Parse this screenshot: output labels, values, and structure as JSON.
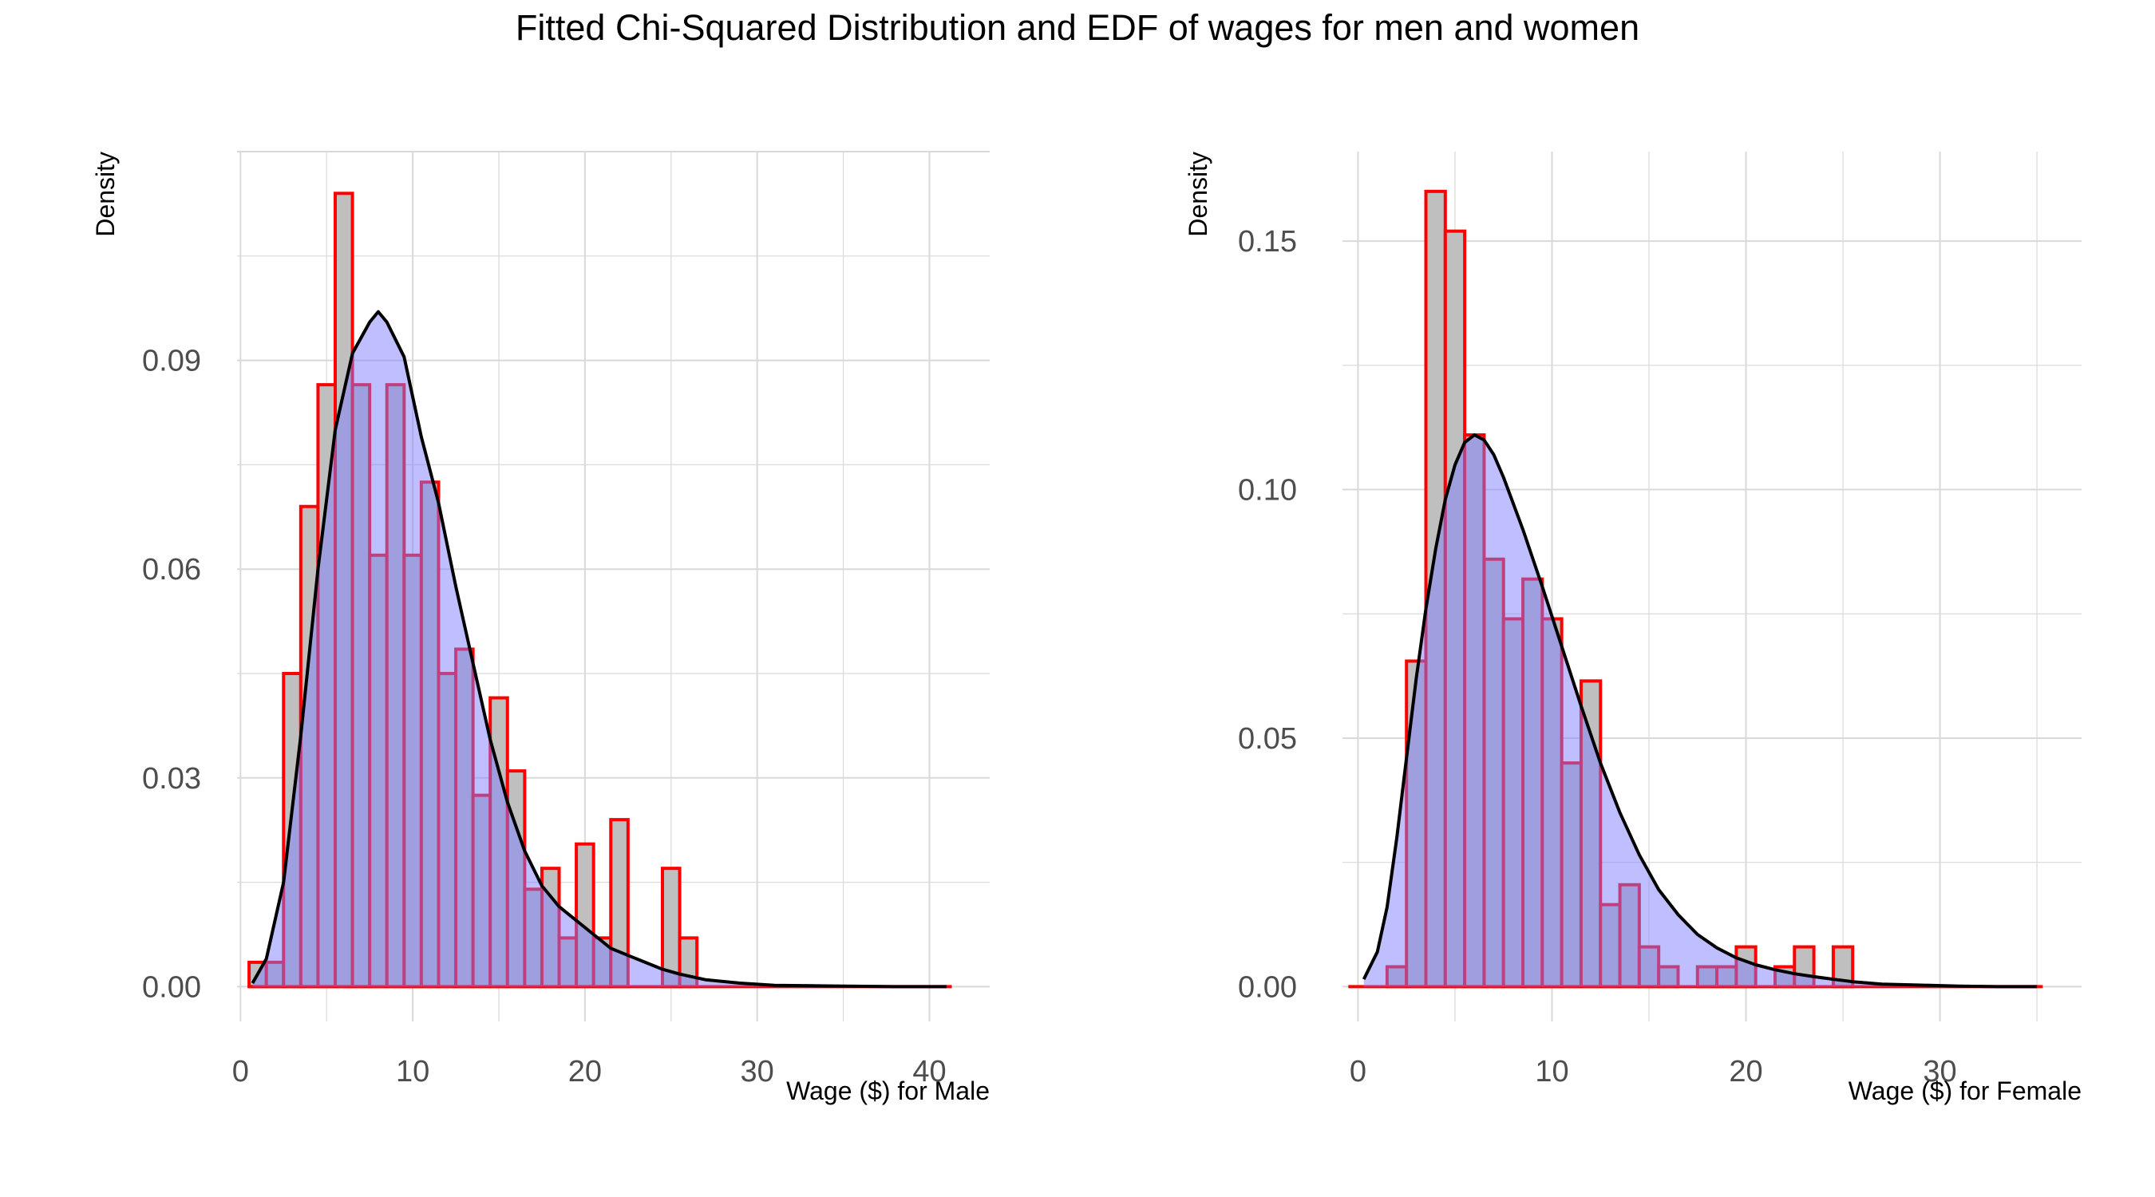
{
  "title": "Fitted Chi-Squared Distribution and EDF of wages for men and women",
  "colors": {
    "hist_fill": "#bfbfbf",
    "hist_stroke": "#ff0000",
    "density_fill": "#8080ff",
    "density_line": "#000000",
    "grid": "#d9d9d9",
    "tick_text": "#4d4d4d"
  },
  "chart_data": [
    {
      "type": "histogram+density",
      "xlabel": "Wage ($) for Male",
      "ylabel": "Density",
      "xlim": [
        -0.2,
        43.5
      ],
      "ylim": [
        -0.005,
        0.12
      ],
      "xticks": [
        0,
        10,
        20,
        30,
        40
      ],
      "xtick_labels": [
        "0",
        "10",
        "20",
        "30",
        "40"
      ],
      "yticks": [
        0.0,
        0.03,
        0.06,
        0.09
      ],
      "ytick_labels": [
        "0.00",
        "0.03",
        "0.06",
        "0.09"
      ],
      "grid": true,
      "bin_width": 1,
      "bins": [
        {
          "x0": 0.5,
          "x1": 1.5,
          "value": 0.0035
        },
        {
          "x0": 1.5,
          "x1": 2.5,
          "value": 0.0035
        },
        {
          "x0": 2.5,
          "x1": 3.5,
          "value": 0.045
        },
        {
          "x0": 3.5,
          "x1": 4.5,
          "value": 0.069
        },
        {
          "x0": 4.5,
          "x1": 5.5,
          "value": 0.0865
        },
        {
          "x0": 5.5,
          "x1": 6.5,
          "value": 0.114
        },
        {
          "x0": 6.5,
          "x1": 7.5,
          "value": 0.0865
        },
        {
          "x0": 7.5,
          "x1": 8.5,
          "value": 0.062
        },
        {
          "x0": 8.5,
          "x1": 9.5,
          "value": 0.0865
        },
        {
          "x0": 9.5,
          "x1": 10.5,
          "value": 0.062
        },
        {
          "x0": 10.5,
          "x1": 11.5,
          "value": 0.0725
        },
        {
          "x0": 11.5,
          "x1": 12.5,
          "value": 0.045
        },
        {
          "x0": 12.5,
          "x1": 13.5,
          "value": 0.0485
        },
        {
          "x0": 13.5,
          "x1": 14.5,
          "value": 0.0275
        },
        {
          "x0": 14.5,
          "x1": 15.5,
          "value": 0.0415
        },
        {
          "x0": 15.5,
          "x1": 16.5,
          "value": 0.031
        },
        {
          "x0": 16.5,
          "x1": 17.5,
          "value": 0.014
        },
        {
          "x0": 17.5,
          "x1": 18.5,
          "value": 0.017
        },
        {
          "x0": 18.5,
          "x1": 19.5,
          "value": 0.007
        },
        {
          "x0": 19.5,
          "x1": 20.5,
          "value": 0.0205
        },
        {
          "x0": 20.5,
          "x1": 21.5,
          "value": 0.007
        },
        {
          "x0": 21.5,
          "x1": 22.5,
          "value": 0.024
        },
        {
          "x0": 22.5,
          "x1": 23.5,
          "value": 0
        },
        {
          "x0": 23.5,
          "x1": 24.5,
          "value": 0
        },
        {
          "x0": 24.5,
          "x1": 25.5,
          "value": 0.017
        },
        {
          "x0": 25.5,
          "x1": 26.5,
          "value": 0.007
        }
      ],
      "baseline_extent": [
        0.5,
        41.3
      ],
      "density": {
        "x": [
          0.7,
          1.5,
          2.5,
          3.5,
          4.5,
          5.5,
          6.5,
          7.5,
          8.0,
          8.5,
          9.5,
          10.5,
          11.5,
          12.5,
          13.5,
          14.5,
          15.5,
          16.5,
          17.5,
          18.5,
          19.5,
          20.5,
          21.5,
          22.5,
          23.5,
          24.5,
          25.5,
          27.0,
          29.0,
          31.0,
          34.0,
          38.0,
          41.0
        ],
        "y": [
          0.0005,
          0.004,
          0.015,
          0.036,
          0.06,
          0.08,
          0.091,
          0.0955,
          0.097,
          0.0955,
          0.0905,
          0.079,
          0.0695,
          0.0575,
          0.0465,
          0.0355,
          0.0265,
          0.0195,
          0.0145,
          0.0115,
          0.0095,
          0.0075,
          0.0055,
          0.0045,
          0.0035,
          0.0025,
          0.0018,
          0.001,
          0.0005,
          0.0002,
          0.0001,
          0.0,
          0.0
        ]
      }
    },
    {
      "type": "histogram+density",
      "xlabel": "Wage ($) for Female",
      "ylabel": "Density",
      "xlim": [
        -0.8,
        37.3
      ],
      "ylim": [
        -0.007,
        0.168
      ],
      "xticks": [
        0,
        10,
        20,
        30
      ],
      "xtick_labels": [
        "0",
        "10",
        "20",
        "30"
      ],
      "yticks": [
        0.0,
        0.05,
        0.1,
        0.15
      ],
      "ytick_labels": [
        "0.00",
        "0.05",
        "0.10",
        "0.15"
      ],
      "grid": true,
      "bin_width": 1,
      "bins": [
        {
          "x0": 1.5,
          "x1": 2.5,
          "value": 0.004
        },
        {
          "x0": 2.5,
          "x1": 3.5,
          "value": 0.0655
        },
        {
          "x0": 3.5,
          "x1": 4.5,
          "value": 0.16
        },
        {
          "x0": 4.5,
          "x1": 5.5,
          "value": 0.152
        },
        {
          "x0": 5.5,
          "x1": 6.5,
          "value": 0.111
        },
        {
          "x0": 6.5,
          "x1": 7.5,
          "value": 0.086
        },
        {
          "x0": 7.5,
          "x1": 8.5,
          "value": 0.074
        },
        {
          "x0": 8.5,
          "x1": 9.5,
          "value": 0.082
        },
        {
          "x0": 9.5,
          "x1": 10.5,
          "value": 0.074
        },
        {
          "x0": 10.5,
          "x1": 11.5,
          "value": 0.045
        },
        {
          "x0": 11.5,
          "x1": 12.5,
          "value": 0.0615
        },
        {
          "x0": 12.5,
          "x1": 13.5,
          "value": 0.0165
        },
        {
          "x0": 13.5,
          "x1": 14.5,
          "value": 0.0205
        },
        {
          "x0": 14.5,
          "x1": 15.5,
          "value": 0.008
        },
        {
          "x0": 15.5,
          "x1": 16.5,
          "value": 0.004
        },
        {
          "x0": 16.5,
          "x1": 17.5,
          "value": 0
        },
        {
          "x0": 17.5,
          "x1": 18.5,
          "value": 0.004
        },
        {
          "x0": 18.5,
          "x1": 19.5,
          "value": 0.004
        },
        {
          "x0": 19.5,
          "x1": 20.5,
          "value": 0.008
        },
        {
          "x0": 20.5,
          "x1": 21.5,
          "value": 0
        },
        {
          "x0": 21.5,
          "x1": 22.5,
          "value": 0.004
        },
        {
          "x0": 22.5,
          "x1": 23.5,
          "value": 0.008
        },
        {
          "x0": 23.5,
          "x1": 24.5,
          "value": 0
        },
        {
          "x0": 24.5,
          "x1": 25.5,
          "value": 0.008
        }
      ],
      "baseline_extent": [
        -0.5,
        35.3
      ],
      "density": {
        "x": [
          0.3,
          1.0,
          1.5,
          2.0,
          2.5,
          3.0,
          3.5,
          4.0,
          4.5,
          5.0,
          5.5,
          6.0,
          6.5,
          7.0,
          7.5,
          8.5,
          9.5,
          10.5,
          11.5,
          12.5,
          13.5,
          14.5,
          15.5,
          16.5,
          17.5,
          18.5,
          19.5,
          20.5,
          21.5,
          22.5,
          23.5,
          24.5,
          25.5,
          27.0,
          29.0,
          31.0,
          33.0,
          35.0
        ],
        "y": [
          0.0015,
          0.007,
          0.016,
          0.03,
          0.046,
          0.062,
          0.076,
          0.088,
          0.098,
          0.105,
          0.1095,
          0.111,
          0.11,
          0.107,
          0.1025,
          0.092,
          0.0805,
          0.0685,
          0.0565,
          0.045,
          0.035,
          0.0265,
          0.0195,
          0.0145,
          0.0105,
          0.0078,
          0.0058,
          0.0044,
          0.0034,
          0.0026,
          0.002,
          0.0015,
          0.001,
          0.0005,
          0.0003,
          0.0001,
          0.0,
          0.0
        ]
      }
    }
  ]
}
